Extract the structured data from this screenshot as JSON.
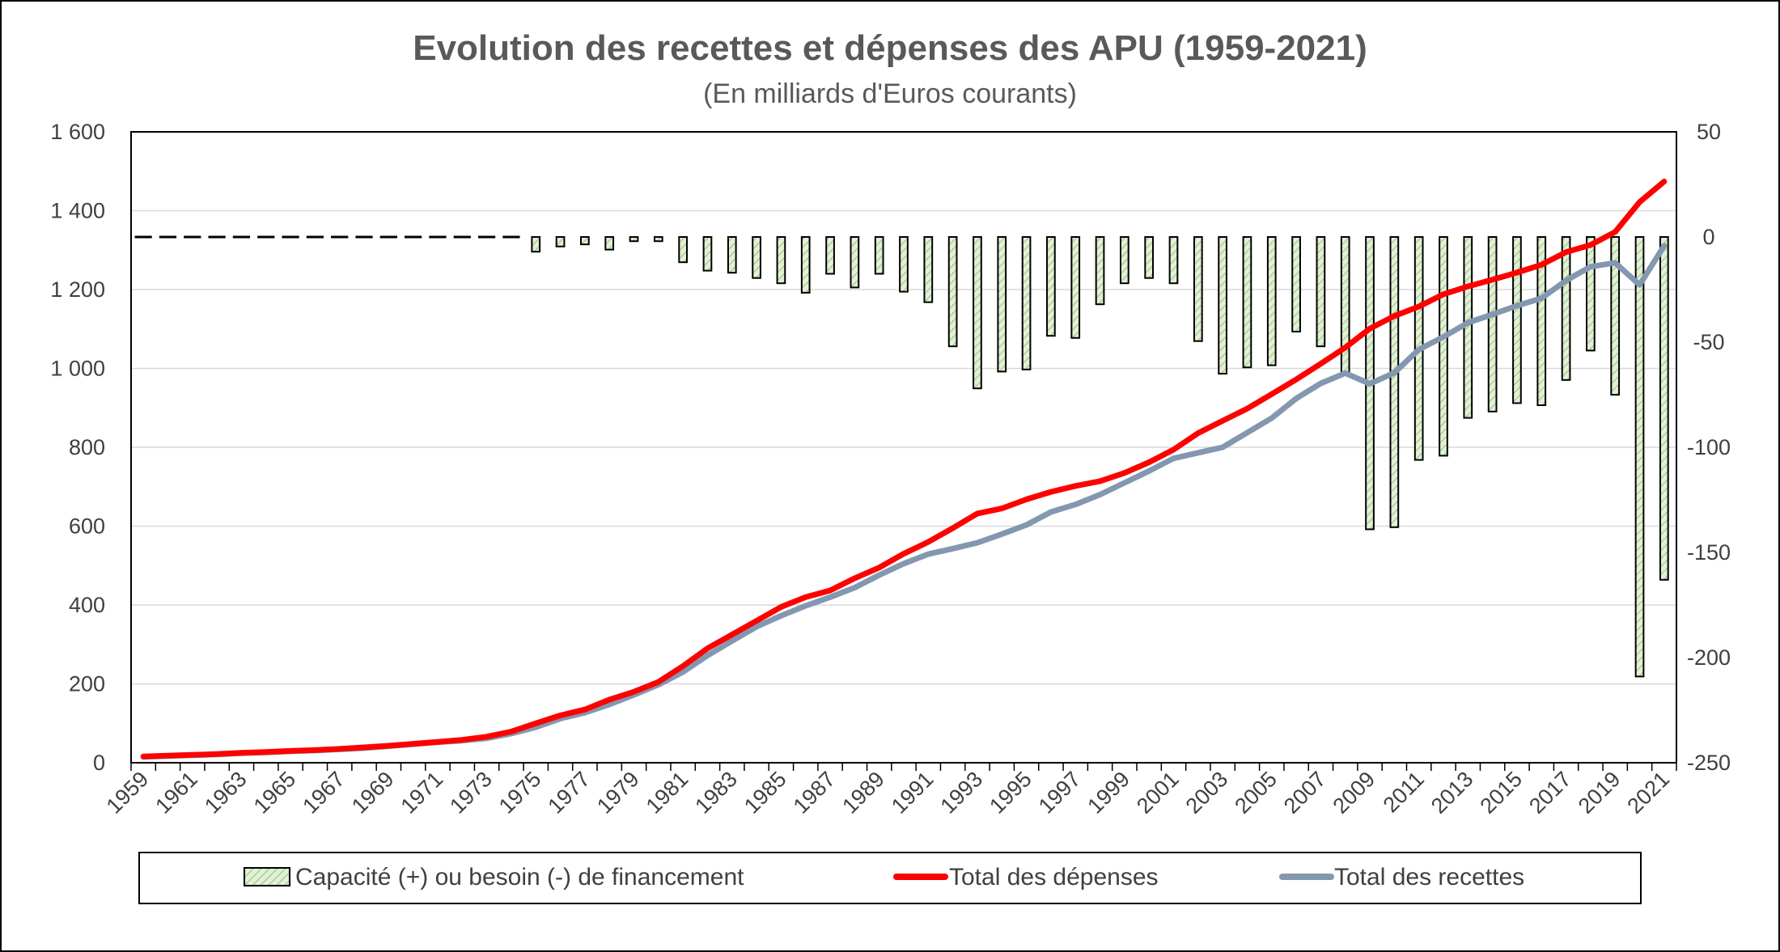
{
  "chart_data": {
    "type": "bar+line",
    "title": "Evolution des recettes et dépenses des APU (1959-2021)",
    "subtitle": "(En milliards d'Euros courants)",
    "x": [
      1959,
      1960,
      1961,
      1962,
      1963,
      1964,
      1965,
      1966,
      1967,
      1968,
      1969,
      1970,
      1971,
      1972,
      1973,
      1974,
      1975,
      1976,
      1977,
      1978,
      1979,
      1980,
      1981,
      1982,
      1983,
      1984,
      1985,
      1986,
      1987,
      1988,
      1989,
      1990,
      1991,
      1992,
      1993,
      1994,
      1995,
      1996,
      1997,
      1998,
      1999,
      2000,
      2001,
      2002,
      2003,
      2004,
      2005,
      2006,
      2007,
      2008,
      2009,
      2010,
      2011,
      2012,
      2013,
      2014,
      2015,
      2016,
      2017,
      2018,
      2019,
      2020,
      2021
    ],
    "x_tick_labels": [
      "1959",
      "1961",
      "1963",
      "1965",
      "1967",
      "1969",
      "1971",
      "1973",
      "1975",
      "1977",
      "1979",
      "1981",
      "1983",
      "1985",
      "1987",
      "1989",
      "1991",
      "1993",
      "1995",
      "1997",
      "1999",
      "2001",
      "2003",
      "2005",
      "2007",
      "2009",
      "2011",
      "2013",
      "2015",
      "2017",
      "2019",
      "2021"
    ],
    "y_left": {
      "min": 0,
      "max": 1600,
      "step": 200,
      "ticks": [
        "0",
        "200",
        "400",
        "600",
        "800",
        "1 000",
        "1 200",
        "1 400",
        "1 600"
      ]
    },
    "y_right": {
      "min": -250,
      "max": 50,
      "step": 50,
      "ticks": [
        "-250",
        "-200",
        "-150",
        "-100",
        "-50",
        "0",
        "50"
      ]
    },
    "grid": true,
    "legend_position": "bottom",
    "series": [
      {
        "name": "Capacité (+) ou besoin  (-) de financement",
        "kind": "bar",
        "axis": "right",
        "fill": "#e2efd9",
        "hatch": "#a9d18e",
        "values": [
          0.5,
          0.5,
          0.3,
          0.2,
          0.3,
          0.4,
          0.3,
          0.2,
          -0.5,
          -1,
          -0.5,
          0.2,
          -0.3,
          0.3,
          0.3,
          0.2,
          -7,
          -4.5,
          -3.5,
          -6,
          -2,
          -2,
          -12,
          -16,
          -17,
          -19.5,
          -22,
          -26.5,
          -17.5,
          -24,
          -17.5,
          -26,
          -31,
          -52,
          -72,
          -64,
          -63,
          -47,
          -48,
          -32,
          -22,
          -19.5,
          -22,
          -49.5,
          -65,
          -62,
          -61,
          -45,
          -52,
          -64.5,
          -139,
          -138,
          -106,
          -104,
          -86,
          -83,
          -79,
          -80,
          -68,
          -54,
          -75,
          -209,
          -163
        ]
      },
      {
        "name": "Total des dépenses",
        "kind": "line",
        "axis": "left",
        "color": "#ff0000",
        "values": [
          16,
          18,
          20,
          22,
          25,
          27,
          30,
          32,
          35,
          39,
          43,
          48,
          53,
          58,
          66,
          79,
          100,
          120,
          135,
          160,
          180,
          205,
          245,
          290,
          325,
          360,
          395,
          420,
          437,
          468,
          495,
          530,
          560,
          595,
          632,
          645,
          668,
          687,
          702,
          714,
          735,
          762,
          794,
          836,
          867,
          898,
          935,
          972,
          1012,
          1053,
          1101,
          1133,
          1157,
          1188,
          1208,
          1225,
          1243,
          1263,
          1295,
          1313,
          1346,
          1422,
          1474
        ]
      },
      {
        "name": "Total des recettes",
        "kind": "line",
        "axis": "left",
        "color": "#8497b0",
        "values": [
          15,
          17,
          19,
          21,
          24,
          26,
          29,
          31,
          34,
          37,
          42,
          47,
          52,
          56,
          62,
          74,
          90,
          112,
          127,
          148,
          172,
          198,
          230,
          272,
          309,
          345,
          373,
          398,
          420,
          444,
          476,
          505,
          529,
          543,
          558,
          580,
          603,
          636,
          655,
          680,
          710,
          740,
          772,
          786,
          800,
          837,
          874,
          924,
          962,
          988,
          961,
          989,
          1048,
          1080,
          1116,
          1137,
          1159,
          1178,
          1223,
          1258,
          1268,
          1212,
          1311
        ]
      }
    ]
  }
}
